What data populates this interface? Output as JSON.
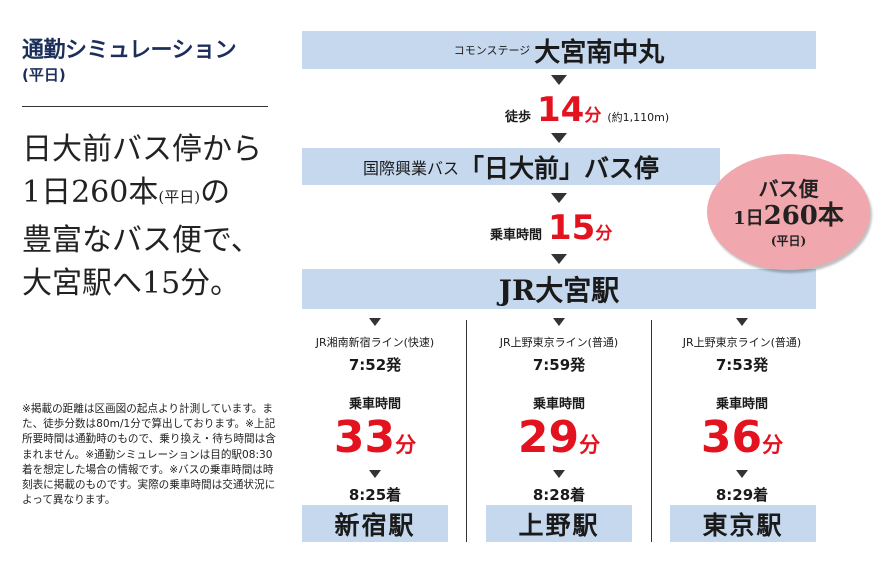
{
  "left": {
    "title": "通勤シミュレーション",
    "subtitle": "(平日)",
    "headline_line1": "日大前バス停から",
    "headline_line2_a": "1日260本",
    "headline_line2_small": "(平日)",
    "headline_line2_b": "の",
    "headline_line3": "豊富なバス便で、",
    "headline_line4": "大宮駅へ15分。",
    "note": "※掲載の距離は区画図の起点より計測しています。また、徒歩分数は80m/1分で算出しております。※上記所要時間は通勤時のもので、乗り換え・待ち時間は含まれません。※通勤シミュレーションは目的駅08:30 着を想定した場合の情報です。※バスの乗車時間は時刻表に掲載のものです。実際の乗車時間は交通状況によって異なります。"
  },
  "route": {
    "origin_prefix": "コモンステージ",
    "origin_name": "大宮南中丸",
    "walk_label": "徒歩",
    "walk_minutes": "14",
    "walk_unit": "分",
    "walk_distance": "(約1,110m)",
    "bus_prefix": "国際興業バス",
    "bus_stop": "「日大前」バス停",
    "bus_ride_label": "乗車時間",
    "bus_minutes": "15",
    "bus_unit": "分",
    "hub_station": "JR大宮駅"
  },
  "badge": {
    "line1": "バス便",
    "line2_a": "1日",
    "line2_b": "260本",
    "line3": "(平日)"
  },
  "trains": [
    {
      "line": "JR湘南新宿ライン(快速)",
      "depart": "7:52発",
      "ride_label": "乗車時間",
      "minutes": "33",
      "unit": "分",
      "arrive": "8:25着",
      "destination": "新宿駅"
    },
    {
      "line": "JR上野東京ライン(普通)",
      "depart": "7:59発",
      "ride_label": "乗車時間",
      "minutes": "29",
      "unit": "分",
      "arrive": "8:28着",
      "destination": "上野駅"
    },
    {
      "line": "JR上野東京ライン(普通)",
      "depart": "7:53発",
      "ride_label": "乗車時間",
      "minutes": "36",
      "unit": "分",
      "arrive": "8:29着",
      "destination": "東京駅"
    }
  ],
  "colors": {
    "band": "#c5d8ee",
    "accent_red": "#e3121f",
    "badge_pink": "#f0a7ad",
    "title_navy": "#1c2f5c"
  }
}
